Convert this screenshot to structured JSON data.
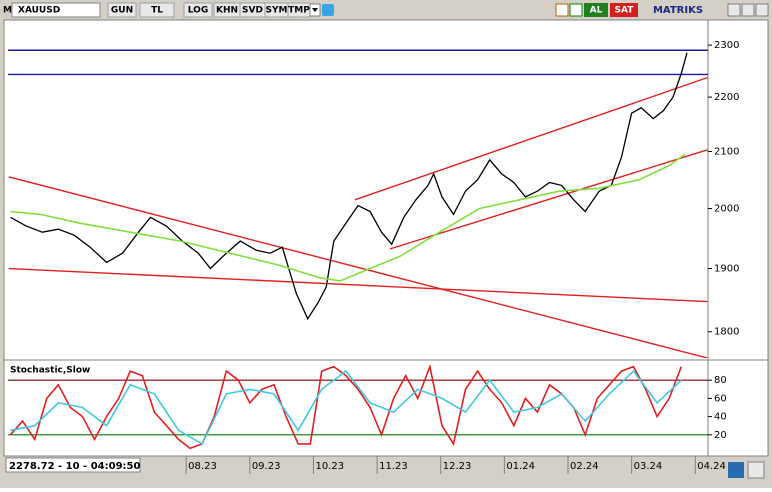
{
  "toolbar": {
    "menu": "M",
    "symbol": "XAUUSD",
    "buttons": [
      "GUN",
      "TL",
      "LOG",
      "KHN",
      "SVD",
      "SYM",
      "TMP"
    ],
    "buy": "AL",
    "sell": "SAT",
    "brand": "MATRIKS"
  },
  "status": "2278.72 - 10 - 04:09:50",
  "chart_data": [
    {
      "type": "line",
      "ylog": true,
      "xlim": [
        5.2,
        16.2
      ],
      "ylim": [
        1760,
        2350
      ],
      "yticks": [
        1800,
        1900,
        2000,
        2100,
        2200,
        2300
      ],
      "series": [
        {
          "color": "#000000",
          "x": [
            5.24,
            5.49,
            5.74,
            5.99,
            6.24,
            6.49,
            6.75,
            7.0,
            7.25,
            7.44,
            7.69,
            7.94,
            8.19,
            8.38,
            8.63,
            8.85,
            9.1,
            9.32,
            9.51,
            9.73,
            9.91,
            10.07,
            10.2,
            10.32,
            10.51,
            10.7,
            10.89,
            11.07,
            11.23,
            11.42,
            11.61,
            11.8,
            11.89,
            12.02,
            12.2,
            12.39,
            12.58,
            12.77,
            12.96,
            13.15,
            13.33,
            13.52,
            13.71,
            13.9,
            14.09,
            14.27,
            14.49,
            14.68,
            14.84,
            15.0,
            15.15,
            15.34,
            15.5,
            15.65,
            15.78,
            15.87
          ],
          "values": [
            1985,
            1970,
            1960,
            1965,
            1955,
            1935,
            1910,
            1925,
            1960,
            1985,
            1970,
            1945,
            1925,
            1900,
            1925,
            1945,
            1930,
            1925,
            1935,
            1860,
            1820,
            1845,
            1870,
            1945,
            1975,
            2005,
            1995,
            1960,
            1940,
            1985,
            2015,
            2040,
            2060,
            2020,
            1990,
            2030,
            2050,
            2085,
            2060,
            2045,
            2020,
            2030,
            2045,
            2040,
            2015,
            1995,
            2030,
            2040,
            2090,
            2170,
            2180,
            2160,
            2175,
            2200,
            2245,
            2285
          ]
        },
        {
          "color": "#80e040",
          "x": [
            5.24,
            5.71,
            6.34,
            7.12,
            7.91,
            8.69,
            9.47,
            10.1,
            10.42,
            10.89,
            11.36,
            11.98,
            12.61,
            13.24,
            13.87,
            14.49,
            15.12,
            15.59,
            15.84
          ],
          "values": [
            1995,
            1990,
            1975,
            1960,
            1945,
            1925,
            1905,
            1885,
            1880,
            1900,
            1920,
            1960,
            2000,
            2015,
            2030,
            2035,
            2050,
            2075,
            2095
          ]
        }
      ],
      "lines": [
        {
          "color": "#1a1aa6",
          "x": [
            5.2,
            16.2
          ],
          "y": [
            2290,
            2290
          ]
        },
        {
          "color": "#1a1aa6",
          "x": [
            5.2,
            16.2
          ],
          "y": [
            2243,
            2243
          ]
        },
        {
          "color": "#e02020",
          "x": [
            5.21,
            16.19
          ],
          "y": [
            2055,
            1760
          ]
        },
        {
          "color": "#e02020",
          "x": [
            5.21,
            16.19
          ],
          "y": [
            1900,
            1847
          ]
        },
        {
          "color": "#e02020",
          "x": [
            10.65,
            16.19
          ],
          "y": [
            2015,
            2237
          ]
        },
        {
          "color": "#e02020",
          "x": [
            11.2,
            16.19
          ],
          "y": [
            1932,
            2103
          ]
        }
      ]
    },
    {
      "type": "line",
      "title": "Stochastic,Slow",
      "xlim": [
        5.2,
        16.2
      ],
      "ylim": [
        0,
        100
      ],
      "yticks": [
        20,
        40,
        60,
        80
      ],
      "xticks": [
        {
          "value": 8,
          "label": "08.23"
        },
        {
          "value": 9,
          "label": "09.23"
        },
        {
          "value": 10,
          "label": "10.23"
        },
        {
          "value": 11,
          "label": "11.23"
        },
        {
          "value": 12,
          "label": "12.23"
        },
        {
          "value": 13,
          "label": "01.24"
        },
        {
          "value": 14,
          "label": "02.24"
        },
        {
          "value": 15,
          "label": "03.24"
        },
        {
          "value": 16,
          "label": "04.24"
        }
      ],
      "levels": [
        {
          "value": 80,
          "color": "#800000"
        },
        {
          "value": 20,
          "color": "#008000"
        }
      ],
      "series": [
        {
          "color": "#e02020",
          "x": [
            5.24,
            5.43,
            5.62,
            5.81,
            5.99,
            6.18,
            6.37,
            6.56,
            6.75,
            6.94,
            7.12,
            7.31,
            7.5,
            7.69,
            7.88,
            8.06,
            8.25,
            8.44,
            8.63,
            8.82,
            9.0,
            9.19,
            9.38,
            9.57,
            9.76,
            9.95,
            10.13,
            10.32,
            10.51,
            10.7,
            10.89,
            11.07,
            11.26,
            11.45,
            11.64,
            11.83,
            12.02,
            12.2,
            12.39,
            12.58,
            12.77,
            12.96,
            13.15,
            13.33,
            13.52,
            13.71,
            13.9,
            14.09,
            14.27,
            14.46,
            14.65,
            14.84,
            15.03,
            15.22,
            15.4,
            15.59,
            15.78
          ],
          "values": [
            20,
            35,
            15,
            60,
            75,
            50,
            40,
            15,
            40,
            60,
            90,
            85,
            45,
            30,
            15,
            5,
            10,
            40,
            90,
            80,
            55,
            70,
            75,
            40,
            10,
            10,
            90,
            95,
            85,
            70,
            50,
            20,
            60,
            85,
            60,
            95,
            30,
            10,
            70,
            90,
            70,
            55,
            30,
            60,
            45,
            75,
            65,
            50,
            20,
            60,
            75,
            90,
            95,
            70,
            40,
            60,
            95
          ]
        },
        {
          "color": "#40c8e0",
          "x": [
            5.24,
            5.62,
            5.99,
            6.37,
            6.75,
            7.12,
            7.5,
            7.88,
            8.25,
            8.63,
            9.0,
            9.38,
            9.76,
            10.13,
            10.51,
            10.89,
            11.26,
            11.64,
            12.02,
            12.39,
            12.77,
            13.15,
            13.52,
            13.9,
            14.27,
            14.65,
            15.03,
            15.4,
            15.78
          ],
          "values": [
            25,
            30,
            55,
            50,
            30,
            75,
            65,
            25,
            10,
            65,
            70,
            65,
            25,
            70,
            90,
            55,
            45,
            70,
            60,
            45,
            80,
            45,
            50,
            65,
            35,
            65,
            90,
            55,
            80
          ]
        }
      ]
    }
  ]
}
